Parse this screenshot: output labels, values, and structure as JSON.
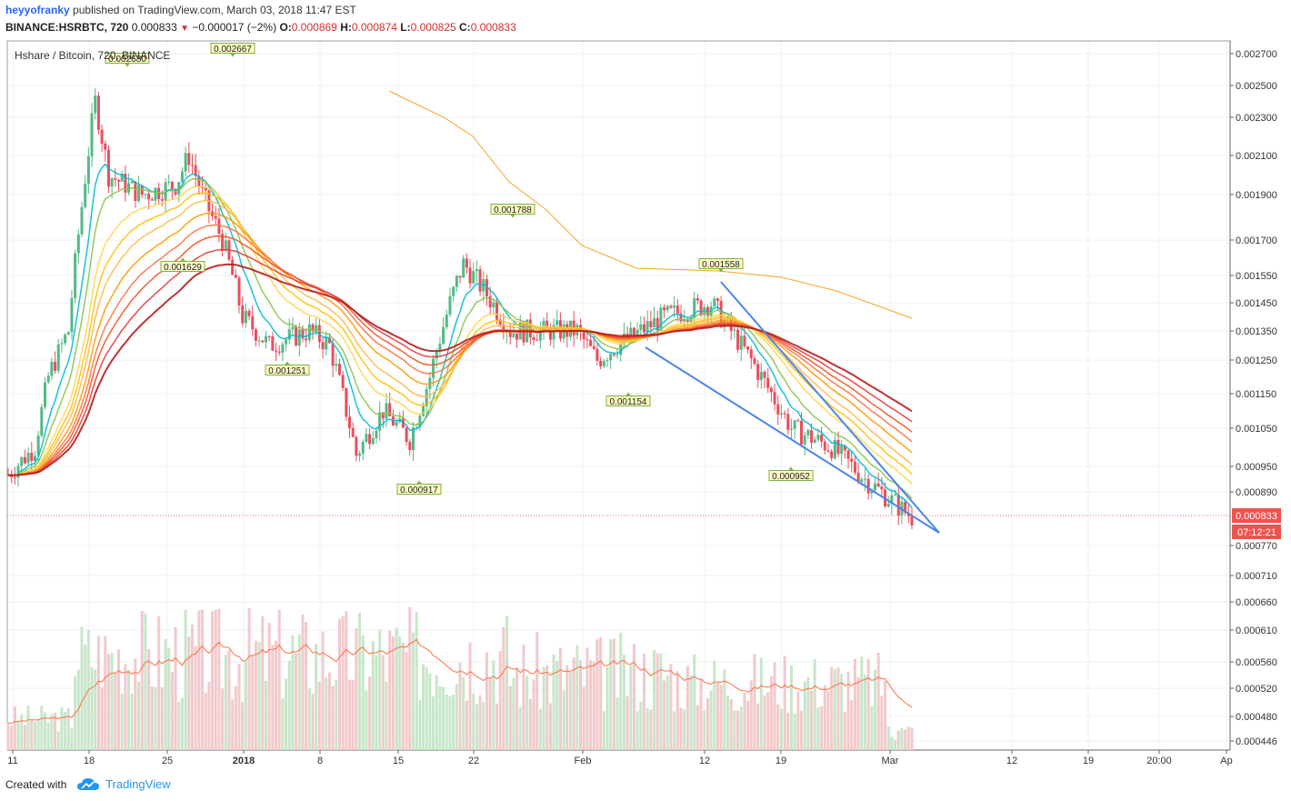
{
  "header": {
    "author": "heyyofranky",
    "published_text": "published on TradingView.com, March 03, 2018 11:47 EST",
    "symbol_line": "BINANCE:HSRBTC, 720",
    "last": "0.000833",
    "change": "−0.000017 (−2%)",
    "open_label": "O:",
    "open": "0.000869",
    "high_label": "H:",
    "high": "0.000874",
    "low_label": "L:",
    "low": "0.000825",
    "close_label": "C:",
    "close": "0.000833"
  },
  "chart_data": {
    "type": "candlestick",
    "title": "Hshare / Bitcoin, 720, BINANCE",
    "price_axis_ticks": [
      "0.002700",
      "0.002500",
      "0.002300",
      "0.002100",
      "0.001900",
      "0.001700",
      "0.001550",
      "0.001450",
      "0.001350",
      "0.001250",
      "0.001150",
      "0.001050",
      "0.000950",
      "0.000890",
      "0.000770",
      "0.000710",
      "0.000660",
      "0.000610",
      "0.000560",
      "0.000520",
      "0.000480",
      "0.000446"
    ],
    "time_axis_ticks": [
      "11",
      "18",
      "25",
      "2018",
      "8",
      "15",
      "22",
      "Feb",
      "12",
      "19",
      "Mar",
      "12",
      "19",
      "20:00",
      "Ap"
    ],
    "current_price_label": "0.000833",
    "countdown_label": "07:12:21",
    "annotations": [
      {
        "label": "0.002680",
        "kind": "high",
        "date": "Dec 21"
      },
      {
        "label": "0.002667",
        "kind": "high",
        "date": "Dec 31"
      },
      {
        "label": "0.001629",
        "kind": "low",
        "date": "Dec 27"
      },
      {
        "label": "0.001251",
        "kind": "low",
        "date": "Jan 4"
      },
      {
        "label": "0.000917",
        "kind": "low",
        "date": "Jan 17"
      },
      {
        "label": "0.001788",
        "kind": "high",
        "date": "Jan 25"
      },
      {
        "label": "0.001154",
        "kind": "low",
        "date": "Feb 5"
      },
      {
        "label": "0.001558",
        "kind": "high",
        "date": "Feb 13"
      },
      {
        "label": "0.000952",
        "kind": "low",
        "date": "Feb 20"
      }
    ],
    "colors": {
      "up": "#53b987",
      "down": "#eb4d5c",
      "vol_up": "#c8e6c9",
      "vol_down": "#f2c9cc",
      "trendline": "#4a86e8",
      "ma_slow": "#f5a623",
      "ribbon": [
        "#00bcd4",
        "#8bc34a",
        "#ffd54f",
        "#ffc107",
        "#ffb74d",
        "#ff9800",
        "#ff7043",
        "#f4511e",
        "#e53935",
        "#b71c1c"
      ]
    },
    "grid": true
  },
  "footer": {
    "created_with": "Created with",
    "brand": "TradingView"
  }
}
